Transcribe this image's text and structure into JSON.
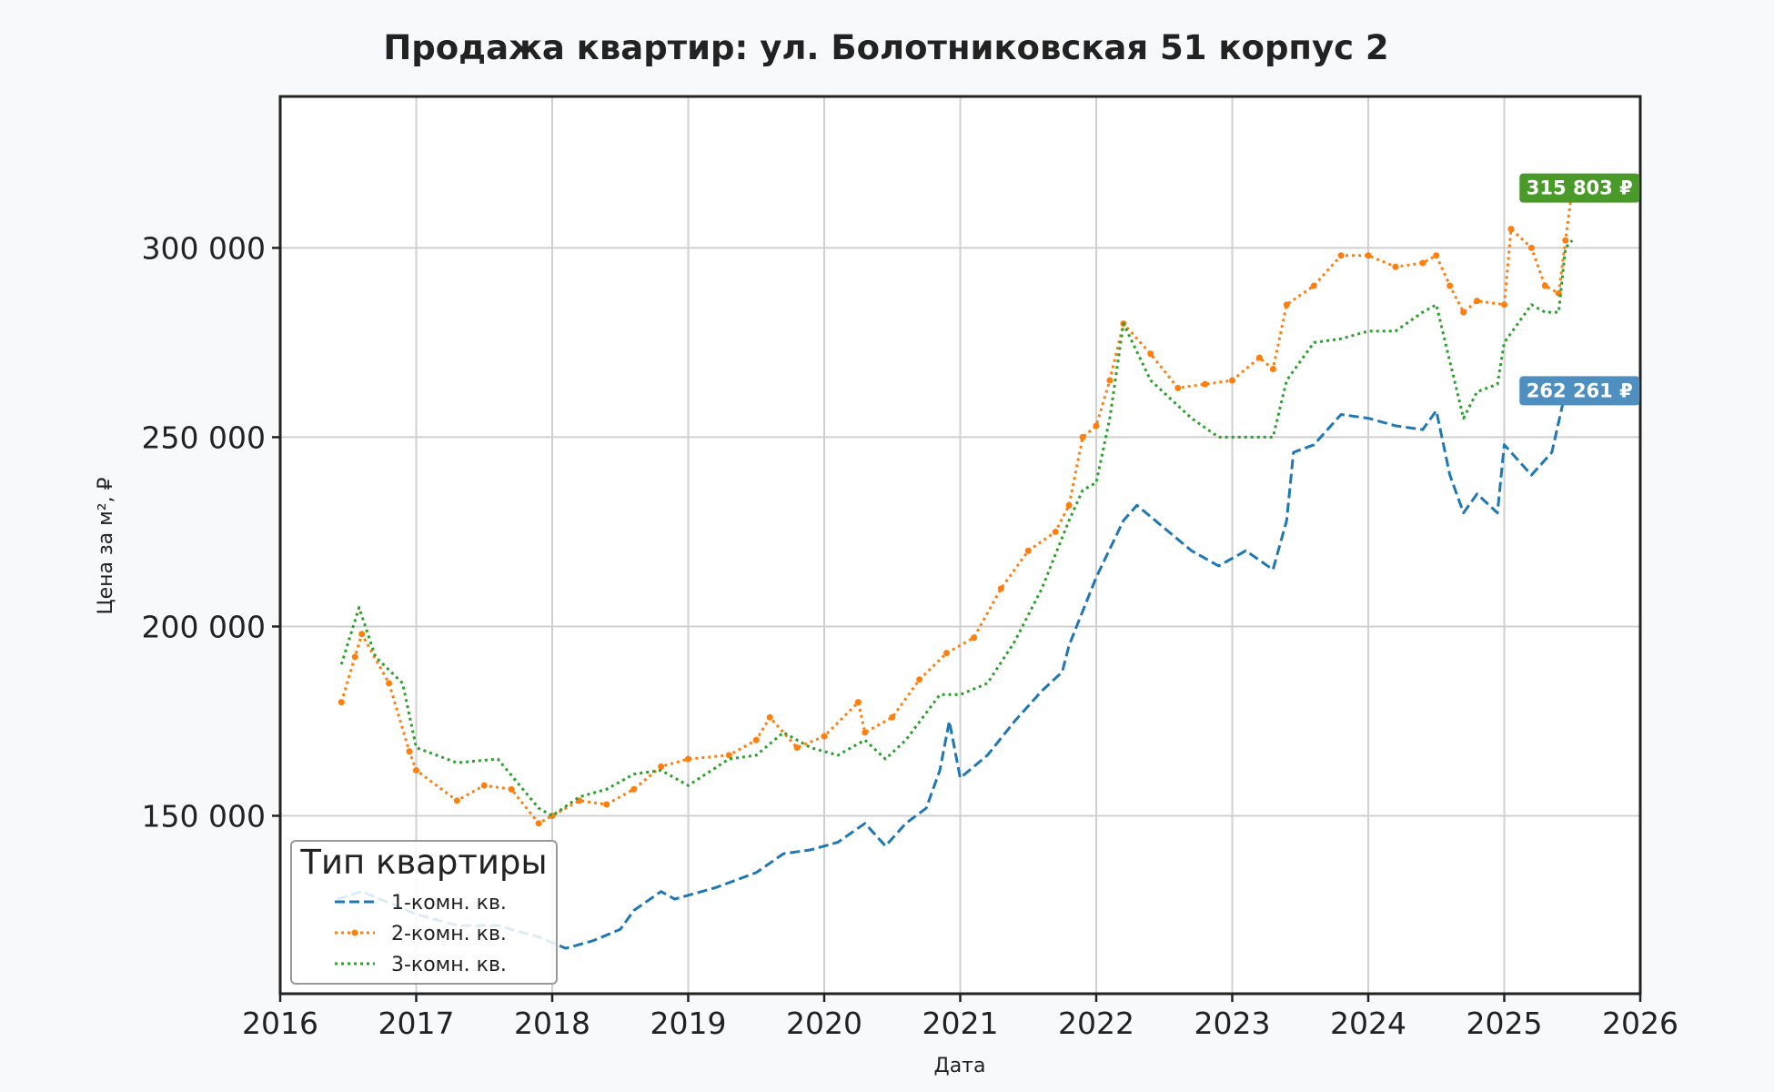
{
  "chart_data": {
    "type": "line",
    "title": "Продажа квартир: ул. Болотниковская 51 корпус 2",
    "xlabel": "Дата",
    "ylabel": "Цена за м², ₽",
    "xlim": [
      2016.0,
      2026.0
    ],
    "ylim": [
      103000,
      340000
    ],
    "x_ticks": [
      {
        "value": 2016,
        "label": "2016"
      },
      {
        "value": 2017,
        "label": "2017"
      },
      {
        "value": 2018,
        "label": "2018"
      },
      {
        "value": 2019,
        "label": "2019"
      },
      {
        "value": 2020,
        "label": "2020"
      },
      {
        "value": 2021,
        "label": "2021"
      },
      {
        "value": 2022,
        "label": "2022"
      },
      {
        "value": 2023,
        "label": "2023"
      },
      {
        "value": 2024,
        "label": "2024"
      },
      {
        "value": 2025,
        "label": "2025"
      },
      {
        "value": 2026,
        "label": "2026"
      }
    ],
    "y_ticks": [
      {
        "value": 150000,
        "label": "150 000"
      },
      {
        "value": 200000,
        "label": "200 000"
      },
      {
        "value": 250000,
        "label": "250 000"
      },
      {
        "value": 300000,
        "label": "300 000"
      }
    ],
    "grid": true,
    "legend": {
      "title": "Тип квартиры",
      "position": "bottom-left"
    },
    "series": [
      {
        "name": "1-комн. кв.",
        "color": "#1f77b4",
        "style": "dashed",
        "marker": false,
        "x": [
          2016.42,
          2016.6,
          2016.8,
          2017.0,
          2017.3,
          2017.6,
          2017.9,
          2018.1,
          2018.3,
          2018.5,
          2018.6,
          2018.8,
          2018.9,
          2019.2,
          2019.5,
          2019.7,
          2019.9,
          2020.1,
          2020.3,
          2020.45,
          2020.6,
          2020.75,
          2020.85,
          2020.92,
          2021.0,
          2021.2,
          2021.4,
          2021.6,
          2021.75,
          2021.8,
          2022.0,
          2022.2,
          2022.3,
          2022.5,
          2022.7,
          2022.9,
          2023.1,
          2023.3,
          2023.4,
          2023.45,
          2023.6,
          2023.8,
          2024.0,
          2024.2,
          2024.4,
          2024.5,
          2024.6,
          2024.7,
          2024.8,
          2024.95,
          2025.0,
          2025.2,
          2025.35,
          2025.45,
          2025.5
        ],
        "y": [
          128000,
          130000,
          127000,
          124000,
          121000,
          121000,
          118000,
          115000,
          117000,
          120000,
          125000,
          130000,
          128000,
          131000,
          135000,
          140000,
          141000,
          143000,
          148000,
          142000,
          148000,
          152000,
          162000,
          175000,
          160000,
          166000,
          175000,
          183000,
          188000,
          195000,
          213000,
          228000,
          232000,
          226000,
          220000,
          216000,
          220000,
          215000,
          228000,
          246000,
          248000,
          256000,
          255000,
          253000,
          252000,
          257000,
          240000,
          230000,
          235000,
          230000,
          248000,
          240000,
          246000,
          262000,
          262261
        ]
      },
      {
        "name": "2-комн. кв.",
        "color": "#ff7f0e",
        "style": "dotted",
        "marker": true,
        "x": [
          2016.45,
          2016.55,
          2016.6,
          2016.8,
          2016.95,
          2017.0,
          2017.3,
          2017.5,
          2017.7,
          2017.9,
          2018.0,
          2018.2,
          2018.4,
          2018.6,
          2018.8,
          2019.0,
          2019.3,
          2019.5,
          2019.6,
          2019.8,
          2020.0,
          2020.25,
          2020.3,
          2020.5,
          2020.7,
          2020.9,
          2021.1,
          2021.3,
          2021.5,
          2021.7,
          2021.8,
          2021.9,
          2022.0,
          2022.1,
          2022.2,
          2022.4,
          2022.6,
          2022.8,
          2023.0,
          2023.2,
          2023.3,
          2023.4,
          2023.6,
          2023.8,
          2024.0,
          2024.2,
          2024.4,
          2024.5,
          2024.6,
          2024.7,
          2024.8,
          2025.0,
          2025.05,
          2025.2,
          2025.3,
          2025.4,
          2025.45,
          2025.5
        ],
        "y": [
          180000,
          192000,
          198000,
          185000,
          167000,
          162000,
          154000,
          158000,
          157000,
          148000,
          150000,
          154000,
          153000,
          157000,
          163000,
          165000,
          166000,
          170000,
          176000,
          168000,
          171000,
          180000,
          172000,
          176000,
          186000,
          193000,
          197000,
          210000,
          220000,
          225000,
          232000,
          250000,
          253000,
          265000,
          280000,
          272000,
          263000,
          264000,
          265000,
          271000,
          268000,
          285000,
          290000,
          298000,
          298000,
          295000,
          296000,
          298000,
          290000,
          283000,
          286000,
          285000,
          305000,
          300000,
          290000,
          288000,
          302000,
          315803
        ]
      },
      {
        "name": "3-комн. кв.",
        "color": "#2ca02c",
        "style": "dotted",
        "marker": false,
        "x": [
          2016.45,
          2016.58,
          2016.7,
          2016.9,
          2017.0,
          2017.3,
          2017.6,
          2017.9,
          2018.0,
          2018.2,
          2018.4,
          2018.6,
          2018.8,
          2019.0,
          2019.3,
          2019.5,
          2019.7,
          2019.9,
          2020.1,
          2020.3,
          2020.45,
          2020.6,
          2020.85,
          2021.0,
          2021.2,
          2021.4,
          2021.6,
          2021.8,
          2021.9,
          2022.0,
          2022.1,
          2022.2,
          2022.4,
          2022.7,
          2022.9,
          2023.1,
          2023.3,
          2023.4,
          2023.6,
          2023.8,
          2024.0,
          2024.2,
          2024.4,
          2024.5,
          2024.6,
          2024.7,
          2024.8,
          2024.95,
          2025.0,
          2025.2,
          2025.3,
          2025.4,
          2025.45,
          2025.5
        ],
        "y": [
          190000,
          205000,
          192000,
          185000,
          168000,
          164000,
          165000,
          152000,
          150000,
          155000,
          157000,
          161000,
          162000,
          158000,
          165000,
          166000,
          172000,
          168000,
          166000,
          170000,
          165000,
          170000,
          182000,
          182000,
          185000,
          196000,
          210000,
          228000,
          236000,
          238000,
          255000,
          280000,
          265000,
          255000,
          250000,
          250000,
          250000,
          265000,
          275000,
          276000,
          278000,
          278000,
          283000,
          285000,
          270000,
          255000,
          262000,
          264000,
          275000,
          285000,
          283000,
          283000,
          300000,
          302000
        ]
      }
    ],
    "annotations": [
      {
        "series": "2-комн. кв.",
        "x": 2025.5,
        "y": 315803,
        "label": "315 803 ₽",
        "color": "#4a9a2a"
      },
      {
        "series": "1-комн. кв.",
        "x": 2025.5,
        "y": 262261,
        "label": "262 261 ₽",
        "color": "#4f8fbf"
      }
    ]
  }
}
